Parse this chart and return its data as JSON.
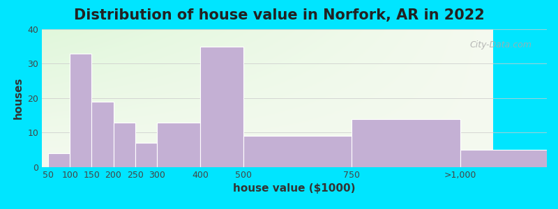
{
  "title": "Distribution of house value in Norfork, AR in 2022",
  "xlabel": "house value ($1000)",
  "ylabel": "houses",
  "bar_labels": [
    "50",
    "100",
    "150",
    "200",
    "250",
    "300",
    "400",
    "500",
    "750",
    ">1,000"
  ],
  "bar_values": [
    4,
    33,
    19,
    13,
    7,
    13,
    35,
    9,
    14,
    5
  ],
  "bar_positions": [
    0,
    1,
    2,
    3,
    4,
    5,
    6,
    7,
    8,
    9
  ],
  "bar_widths_rel": [
    1,
    1,
    1,
    1,
    1,
    2,
    2,
    5,
    5,
    4
  ],
  "bar_color": "#c4b0d4",
  "bar_edgecolor": "#ffffff",
  "ylim": [
    0,
    40
  ],
  "yticks": [
    0,
    10,
    20,
    30,
    40
  ],
  "outer_background": "#00e5ff",
  "title_fontsize": 15,
  "axis_fontsize": 11,
  "tick_fontsize": 9,
  "grid_color": "#cccccc",
  "watermark_text": "City-Data.com"
}
